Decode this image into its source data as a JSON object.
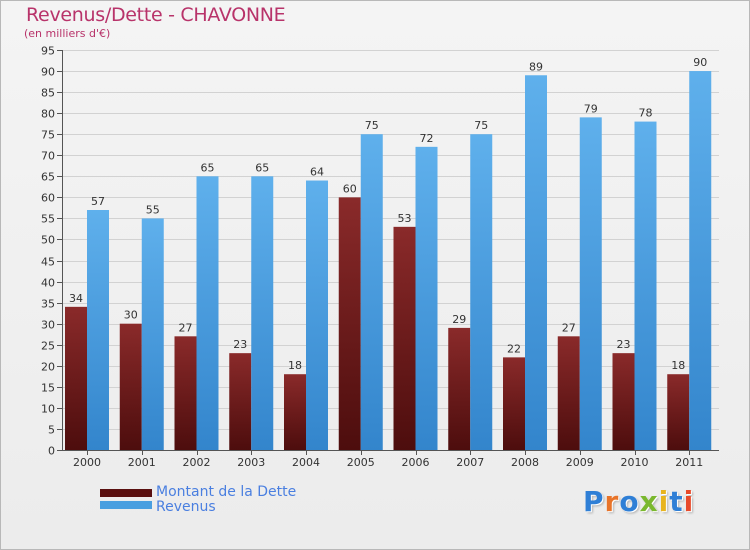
{
  "header": {
    "title": "Revenus/Dette - CHAVONNE",
    "subtitle": "(en milliers d'€)"
  },
  "legend": {
    "debt_label": "Montant de la Dette",
    "revenue_label": "Revenus"
  },
  "logo": {
    "text": "Proxiti"
  },
  "colors": {
    "debt": "#7a1f1f",
    "debt_dark": "#4d0d0d",
    "revenue": "#57a9e6",
    "revenue_dark": "#3f8ed3",
    "title": "#b8336a",
    "axis_text": "#333333"
  },
  "chart_data": {
    "type": "bar",
    "title": "Revenus/Dette - CHAVONNE",
    "ylabel": "(en milliers d'€)",
    "xlabel": "",
    "ylim": [
      0,
      95
    ],
    "ytick_step": 5,
    "grid": true,
    "legend_position": "bottom-left",
    "categories": [
      "2000",
      "2001",
      "2002",
      "2003",
      "2004",
      "2005",
      "2006",
      "2007",
      "2008",
      "2009",
      "2010",
      "2011"
    ],
    "series": [
      {
        "name": "Montant de la Dette",
        "values": [
          34,
          30,
          27,
          23,
          18,
          60,
          53,
          29,
          22,
          27,
          23,
          18
        ]
      },
      {
        "name": "Revenus",
        "values": [
          57,
          55,
          65,
          65,
          64,
          75,
          72,
          75,
          89,
          79,
          78,
          90
        ]
      }
    ]
  }
}
